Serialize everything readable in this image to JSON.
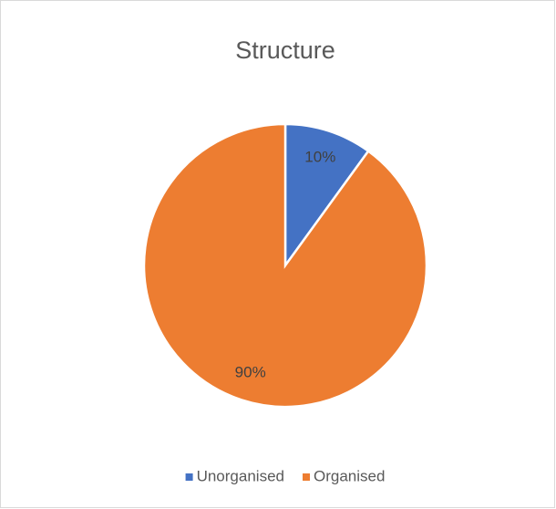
{
  "chart_data": {
    "type": "pie",
    "title": "Structure",
    "categories": [
      "Unorganised",
      "Organised"
    ],
    "values": [
      10,
      90
    ],
    "value_labels": [
      "10%",
      "90%"
    ],
    "colors": [
      "#4472c4",
      "#ed7d31"
    ],
    "legend": "bottom"
  }
}
